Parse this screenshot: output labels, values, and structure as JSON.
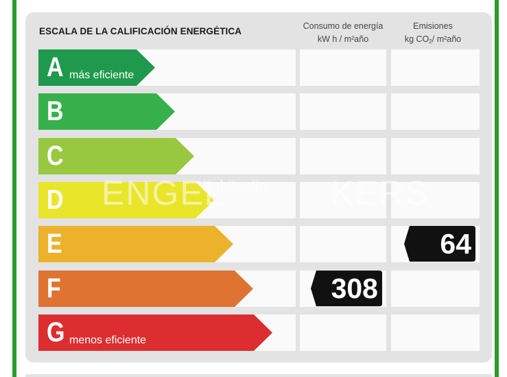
{
  "header": {
    "title": "ESCALA DE LA CALIFICACIÓN ENERGÉTICA",
    "consumo_line1": "Consumo de energía",
    "consumo_line2": "kW h / m²año",
    "emisiones_line1": "Emisiones",
    "emisiones_line2_a": "kg CO",
    "emisiones_line2_sub": "2",
    "emisiones_line2_b": "/ m²año"
  },
  "ratings": [
    {
      "letter": "A",
      "caption": "más eficiente",
      "color": "#1f9a4c"
    },
    {
      "letter": "B",
      "caption": "",
      "color": "#36b04a"
    },
    {
      "letter": "C",
      "caption": "",
      "color": "#97c840"
    },
    {
      "letter": "D",
      "caption": "",
      "color": "#e9e52a"
    },
    {
      "letter": "E",
      "caption": "",
      "color": "#ecb22c"
    },
    {
      "letter": "F",
      "caption": "",
      "color": "#df7332"
    },
    {
      "letter": "G",
      "caption": "menos eficiente",
      "color": "#dc2e31"
    }
  ],
  "consumo": {
    "rating": "F",
    "value": "308"
  },
  "emisiones": {
    "rating": "E",
    "value": "64"
  },
  "watermark": {
    "text": "ENGEL",
    "text2": "habitaclia",
    "text3": "KERS"
  },
  "colors": {
    "frame": "#2c9a2c",
    "panel": "#e3e3e3",
    "badge": "#111111"
  }
}
